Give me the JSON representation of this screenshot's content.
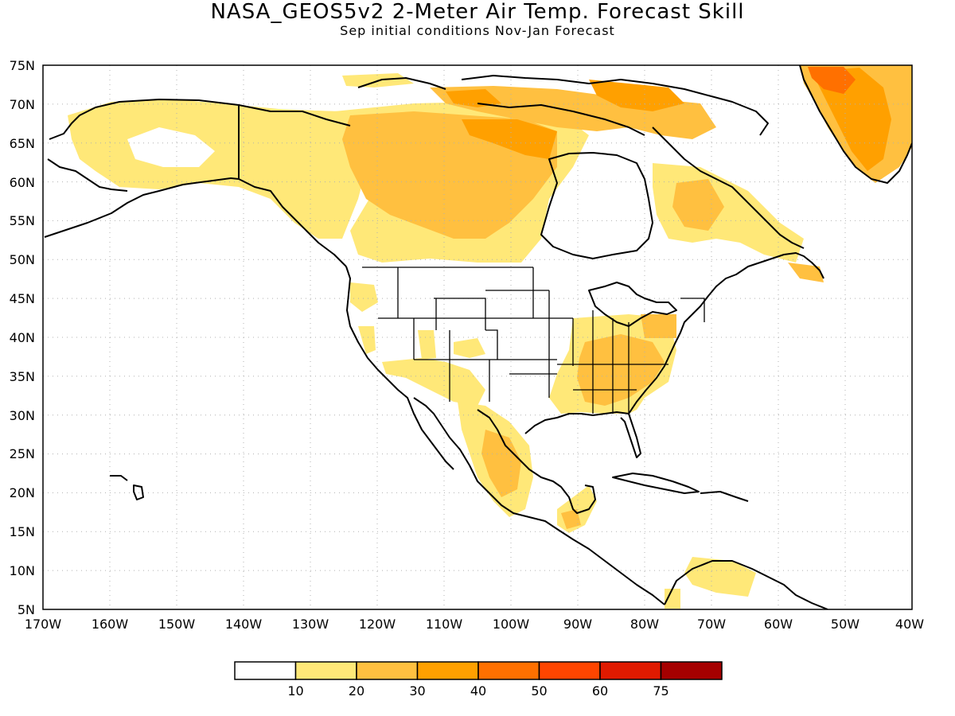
{
  "header": {
    "title": "NASA_GEOS5v2 2-Meter Air Temp. Forecast Skill",
    "subtitle": "Sep initial conditions  Nov-Jan Forecast"
  },
  "axes": {
    "lat_labels": [
      "75N",
      "70N",
      "65N",
      "60N",
      "55N",
      "50N",
      "45N",
      "40N",
      "35N",
      "30N",
      "25N",
      "20N",
      "15N",
      "10N",
      "5N"
    ],
    "lon_labels": [
      "170W",
      "160W",
      "150W",
      "140W",
      "130W",
      "120W",
      "110W",
      "100W",
      "90W",
      "80W",
      "70W",
      "60W",
      "50W",
      "40W"
    ],
    "lat_range": [
      5,
      75
    ],
    "lon_range": [
      -170,
      -40
    ],
    "grid": "dotted"
  },
  "colorbar": {
    "labels": [
      "10",
      "20",
      "30",
      "40",
      "50",
      "60",
      "75"
    ],
    "colors": [
      "#ffffff",
      "#ffe878",
      "#ffc040",
      "#ffa000",
      "#ff7000",
      "#ff4500",
      "#e01a00",
      "#a50000"
    ]
  },
  "map_data": {
    "variable": "2-Meter Air Temp. Forecast Skill",
    "skill_regions": [
      {
        "region": "Alaska",
        "level": "10-20"
      },
      {
        "region": "Northern Canada",
        "level": "20-30"
      },
      {
        "region": "Hudson Bay / Baffin coast",
        "level": "30-40"
      },
      {
        "region": "Greenland",
        "level": "30-50"
      },
      {
        "region": "Southeastern United States",
        "level": "20-30"
      },
      {
        "region": "Mexico",
        "level": "10-30"
      },
      {
        "region": "Labrador / Quebec",
        "level": "10-30"
      },
      {
        "region": "Northern South America",
        "level": "10-20"
      }
    ]
  }
}
